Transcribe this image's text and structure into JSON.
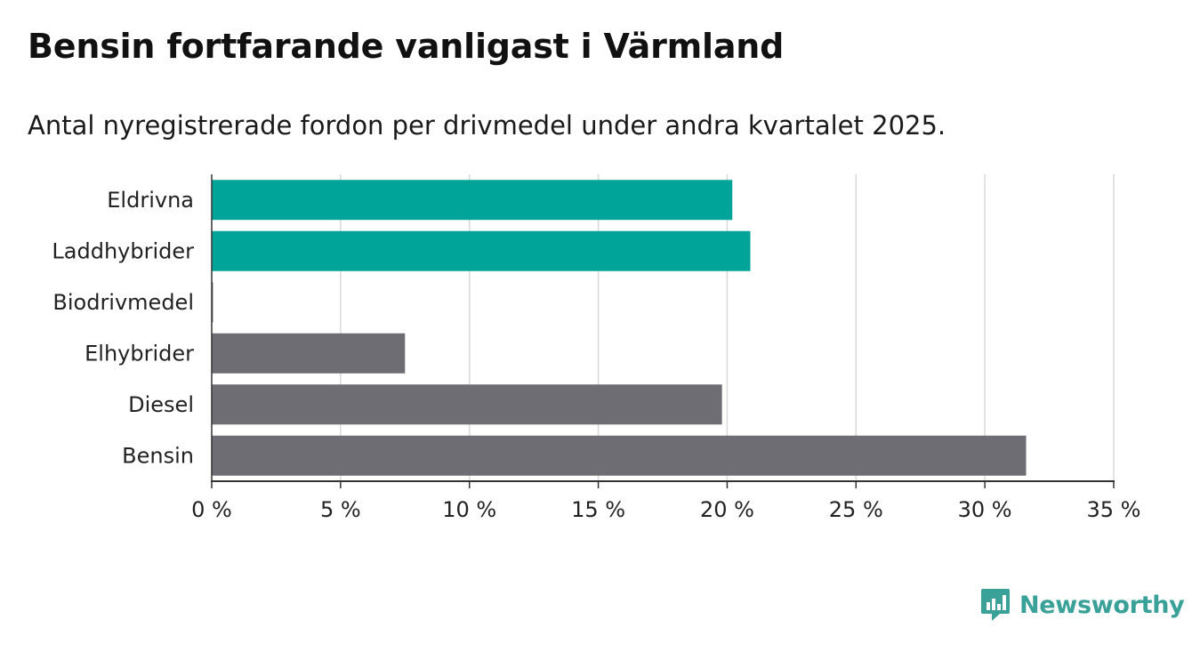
{
  "header": {
    "title": "Bensin fortfarande vanligast i Värmland",
    "subtitle": "Antal nyregistrerade fordon per drivmedel under andra kvartalet 2025."
  },
  "brand": {
    "name": "Newsworthy",
    "icon": "newsworthy-logo-icon",
    "color": "#3aa199"
  },
  "chart_data": {
    "type": "bar",
    "orientation": "horizontal",
    "title": "Bensin fortfarande vanligast i Värmland",
    "subtitle": "Antal nyregistrerade fordon per drivmedel under andra kvartalet 2025.",
    "categories": [
      "Eldrivna",
      "Laddhybrider",
      "Biodrivmedel",
      "Elhybrider",
      "Diesel",
      "Bensin"
    ],
    "values": [
      20.2,
      20.9,
      0.05,
      7.5,
      19.8,
      31.6
    ],
    "colors": [
      "#00a499",
      "#00a499",
      "#6e6d73",
      "#6e6d73",
      "#6e6d73",
      "#6e6d73"
    ],
    "xlim": [
      0,
      35
    ],
    "xticks": [
      0,
      5,
      10,
      15,
      20,
      25,
      30,
      35
    ],
    "xtick_labels": [
      "0 %",
      "5 %",
      "10 %",
      "15 %",
      "20 %",
      "25 %",
      "30 %",
      "35 %"
    ],
    "grid": "vertical",
    "xlabel": "",
    "ylabel": ""
  }
}
